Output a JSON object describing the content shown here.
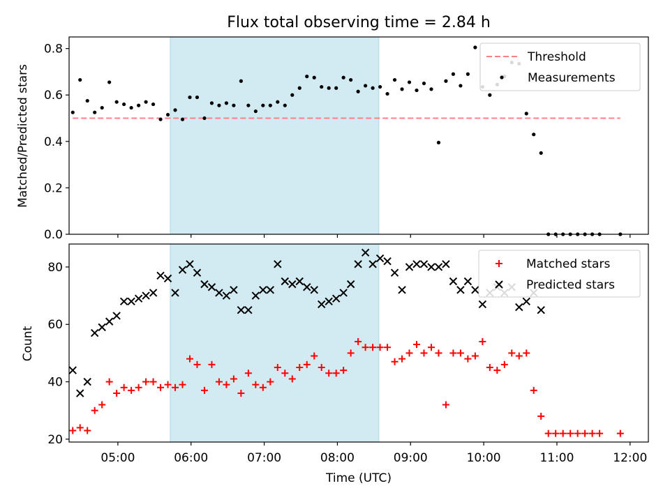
{
  "title": "Flux total observing time = 2.84 h",
  "colors": {
    "threshold": "#ff8080",
    "measurement": "#000000",
    "matched": "#ff0000",
    "predicted": "#000000",
    "observing_window": "#add8e6"
  },
  "chart_data": [
    {
      "type": "scatter",
      "ylabel": "Matched/Predicted stars",
      "ylim": [
        0,
        0.85
      ],
      "yticks": [
        0.0,
        0.2,
        0.4,
        0.6,
        0.8
      ],
      "ytick_labels": [
        "0.0",
        "0.2",
        "0.4",
        "0.6",
        "0.8"
      ],
      "xlim": [
        "04:20",
        "12:15"
      ],
      "shaded_interval": [
        "05:43",
        "08:34"
      ],
      "legend_position": "upper right",
      "threshold": {
        "name": "Threshold",
        "value": 0.5,
        "x_range": [
          "04:23",
          "11:52"
        ]
      },
      "series": [
        {
          "name": "Measurements",
          "marker": "dot",
          "x": [
            "04:23",
            "04:29",
            "04:35",
            "04:41",
            "04:47",
            "04:53",
            "04:59",
            "05:05",
            "05:11",
            "05:17",
            "05:23",
            "05:29",
            "05:35",
            "05:41",
            "05:47",
            "05:53",
            "05:59",
            "06:05",
            "06:11",
            "06:17",
            "06:23",
            "06:29",
            "06:35",
            "06:41",
            "06:47",
            "06:53",
            "06:59",
            "07:05",
            "07:11",
            "07:17",
            "07:23",
            "07:29",
            "07:35",
            "07:41",
            "07:47",
            "07:53",
            "07:59",
            "08:05",
            "08:11",
            "08:17",
            "08:23",
            "08:29",
            "08:35",
            "08:41",
            "08:47",
            "08:53",
            "08:59",
            "09:05",
            "09:11",
            "09:17",
            "09:23",
            "09:29",
            "09:35",
            "09:41",
            "09:47",
            "09:53",
            "09:59",
            "10:05",
            "10:11",
            "10:17",
            "10:23",
            "10:29",
            "10:35",
            "10:41",
            "10:47",
            "10:53",
            "10:59",
            "11:05",
            "11:11",
            "11:17",
            "11:23",
            "11:29",
            "11:35",
            "11:52"
          ],
          "y": [
            0.525,
            0.665,
            0.575,
            0.525,
            0.545,
            0.655,
            0.57,
            0.56,
            0.545,
            0.555,
            0.57,
            0.56,
            0.495,
            0.515,
            0.535,
            0.495,
            0.59,
            0.59,
            0.5,
            0.565,
            0.555,
            0.565,
            0.555,
            0.66,
            0.555,
            0.53,
            0.555,
            0.555,
            0.57,
            0.555,
            0.6,
            0.63,
            0.68,
            0.675,
            0.635,
            0.63,
            0.63,
            0.675,
            0.665,
            0.615,
            0.64,
            0.63,
            0.635,
            0.605,
            0.665,
            0.625,
            0.655,
            0.62,
            0.65,
            0.625,
            0.395,
            0.66,
            0.69,
            0.64,
            0.69,
            0.805,
            0.635,
            0.6,
            0.645,
            0.68,
            0.74,
            0.735,
            0.52,
            0.43,
            0.35,
            0.0,
            0.0,
            0.0,
            0.0,
            0.0,
            0.0,
            0.0,
            0.0,
            0.0
          ]
        }
      ]
    },
    {
      "type": "scatter",
      "xlabel": "Time (UTC)",
      "ylabel": "Count",
      "ylim": [
        19,
        88
      ],
      "yticks": [
        20,
        40,
        60,
        80
      ],
      "ytick_labels": [
        "20",
        "40",
        "60",
        "80"
      ],
      "xlim": [
        "04:20",
        "12:15"
      ],
      "xticks": [
        "05:00",
        "06:00",
        "07:00",
        "08:00",
        "09:00",
        "10:00",
        "11:00",
        "12:00"
      ],
      "xtick_labels": [
        "05:00",
        "06:00",
        "07:00",
        "08:00",
        "09:00",
        "10:00",
        "11:00",
        "12:00"
      ],
      "shaded_interval": [
        "05:43",
        "08:34"
      ],
      "legend_position": "upper right",
      "series": [
        {
          "name": "Matched stars",
          "marker": "plus",
          "x": [
            "04:23",
            "04:29",
            "04:35",
            "04:41",
            "04:47",
            "04:53",
            "04:59",
            "05:05",
            "05:11",
            "05:17",
            "05:23",
            "05:29",
            "05:35",
            "05:41",
            "05:47",
            "05:53",
            "05:59",
            "06:05",
            "06:11",
            "06:17",
            "06:23",
            "06:29",
            "06:35",
            "06:41",
            "06:47",
            "06:53",
            "06:59",
            "07:05",
            "07:11",
            "07:17",
            "07:23",
            "07:29",
            "07:35",
            "07:41",
            "07:47",
            "07:53",
            "07:59",
            "08:05",
            "08:11",
            "08:17",
            "08:23",
            "08:29",
            "08:35",
            "08:41",
            "08:47",
            "08:53",
            "08:59",
            "09:05",
            "09:11",
            "09:17",
            "09:23",
            "09:29",
            "09:35",
            "09:41",
            "09:47",
            "09:53",
            "09:59",
            "10:05",
            "10:11",
            "10:17",
            "10:23",
            "10:29",
            "10:35",
            "10:41",
            "10:47",
            "10:53",
            "10:59",
            "11:05",
            "11:11",
            "11:17",
            "11:23",
            "11:29",
            "11:35",
            "11:52"
          ],
          "y": [
            23,
            24,
            23,
            30,
            32,
            40,
            36,
            38,
            37,
            38,
            40,
            40,
            38,
            39,
            38,
            39,
            48,
            46,
            37,
            46,
            40,
            39,
            41,
            36,
            43,
            39,
            38,
            40,
            45,
            43,
            41,
            45,
            46,
            49,
            45,
            43,
            43,
            44,
            50,
            54,
            52,
            52,
            52,
            52,
            47,
            48,
            50,
            53,
            50,
            52,
            50,
            32,
            50,
            50,
            48,
            49,
            54,
            45,
            44,
            46,
            50,
            49,
            50,
            37,
            28,
            22,
            22,
            22,
            22,
            22,
            22,
            22,
            22,
            22
          ]
        },
        {
          "name": "Predicted stars",
          "marker": "x",
          "x": [
            "04:23",
            "04:29",
            "04:35",
            "04:41",
            "04:47",
            "04:53",
            "04:59",
            "05:05",
            "05:11",
            "05:17",
            "05:23",
            "05:29",
            "05:35",
            "05:41",
            "05:47",
            "05:53",
            "05:59",
            "06:05",
            "06:11",
            "06:17",
            "06:23",
            "06:29",
            "06:35",
            "06:41",
            "06:47",
            "06:53",
            "06:59",
            "07:05",
            "07:11",
            "07:17",
            "07:23",
            "07:29",
            "07:35",
            "07:41",
            "07:47",
            "07:53",
            "07:59",
            "08:05",
            "08:11",
            "08:17",
            "08:23",
            "08:29",
            "08:35",
            "08:41",
            "08:47",
            "08:53",
            "08:59",
            "09:05",
            "09:11",
            "09:17",
            "09:23",
            "09:29",
            "09:35",
            "09:41",
            "09:47",
            "09:53",
            "09:59",
            "10:05",
            "10:11",
            "10:17",
            "10:23",
            "10:29",
            "10:35",
            "10:41",
            "10:47"
          ],
          "y": [
            44,
            36,
            40,
            57,
            59,
            61,
            63,
            68,
            68,
            69,
            70,
            71,
            77,
            76,
            71,
            79,
            81,
            78,
            74,
            73,
            71,
            70,
            72,
            65,
            65,
            70,
            72,
            72,
            81,
            75,
            74,
            75,
            73,
            72,
            67,
            68,
            69,
            71,
            74,
            81,
            85,
            81,
            83,
            82,
            78,
            72,
            80,
            81,
            81,
            80,
            80,
            81,
            75,
            72,
            75,
            72,
            67,
            71,
            73,
            71,
            73,
            66,
            68,
            71,
            65
          ]
        }
      ]
    }
  ]
}
